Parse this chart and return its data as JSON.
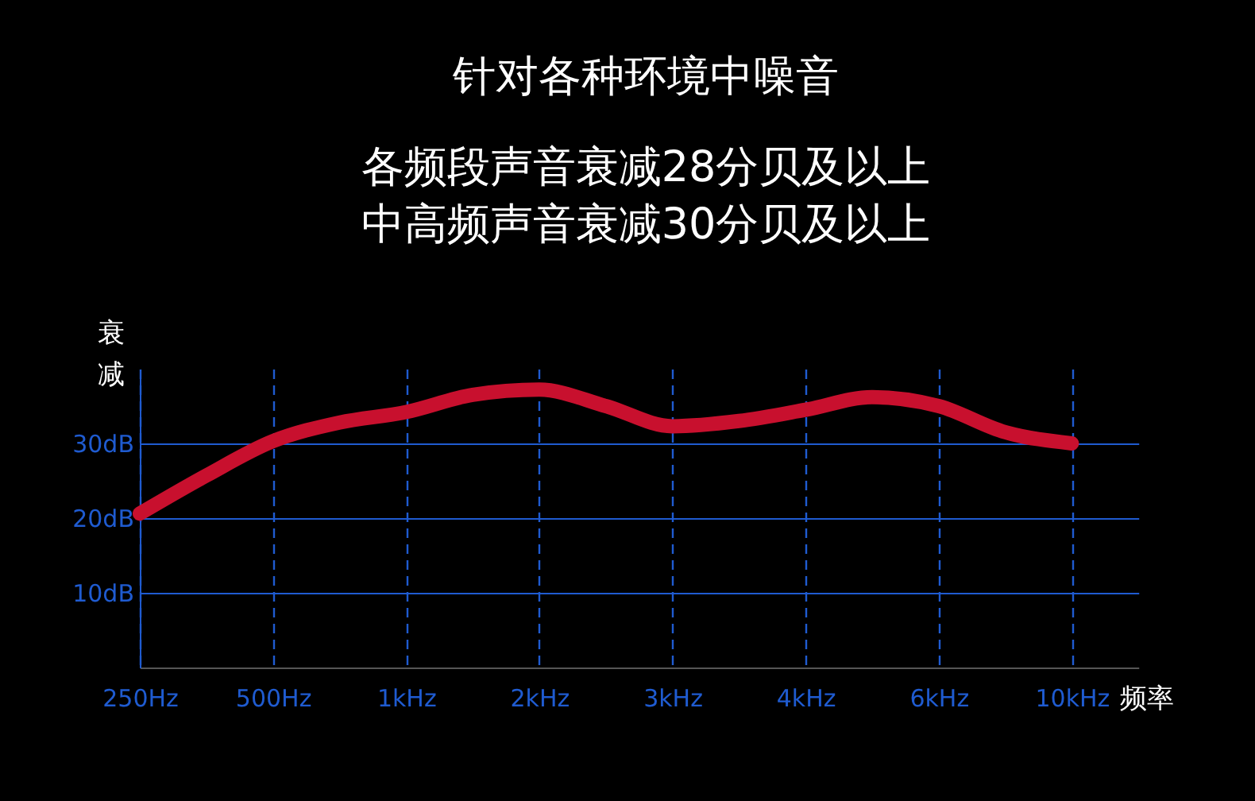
{
  "chart_data": {
    "type": "line",
    "title": "针对各种环境中噪音",
    "subtitle": "各频段声音衰减28分贝及以上中高频声音衰减30分贝及以上",
    "xlabel": "频率",
    "ylabel": "衰减",
    "categories": [
      "250Hz",
      null,
      "500Hz",
      null,
      "1kHz",
      null,
      "2kHz",
      null,
      "3kHz",
      null,
      "4kHz",
      null,
      "6kHz",
      null,
      "10kHz",
      null
    ],
    "series": [
      {
        "color": "#c8102e",
        "values": [
          20.6,
          25.7,
          30.3,
          32.8,
          34.2,
          36.5,
          37.2,
          35,
          32.3,
          33,
          34.5,
          36.2,
          35,
          31.5,
          30,
          null
        ]
      }
    ],
    "ylim": [
      0,
      40
    ],
    "yticks": [
      {
        "value": 10,
        "label": "10dB"
      },
      {
        "value": 20,
        "label": "20dB"
      },
      {
        "value": 30,
        "label": "30dB"
      }
    ],
    "grid": true,
    "marker": "none",
    "line_style": "solid"
  }
}
